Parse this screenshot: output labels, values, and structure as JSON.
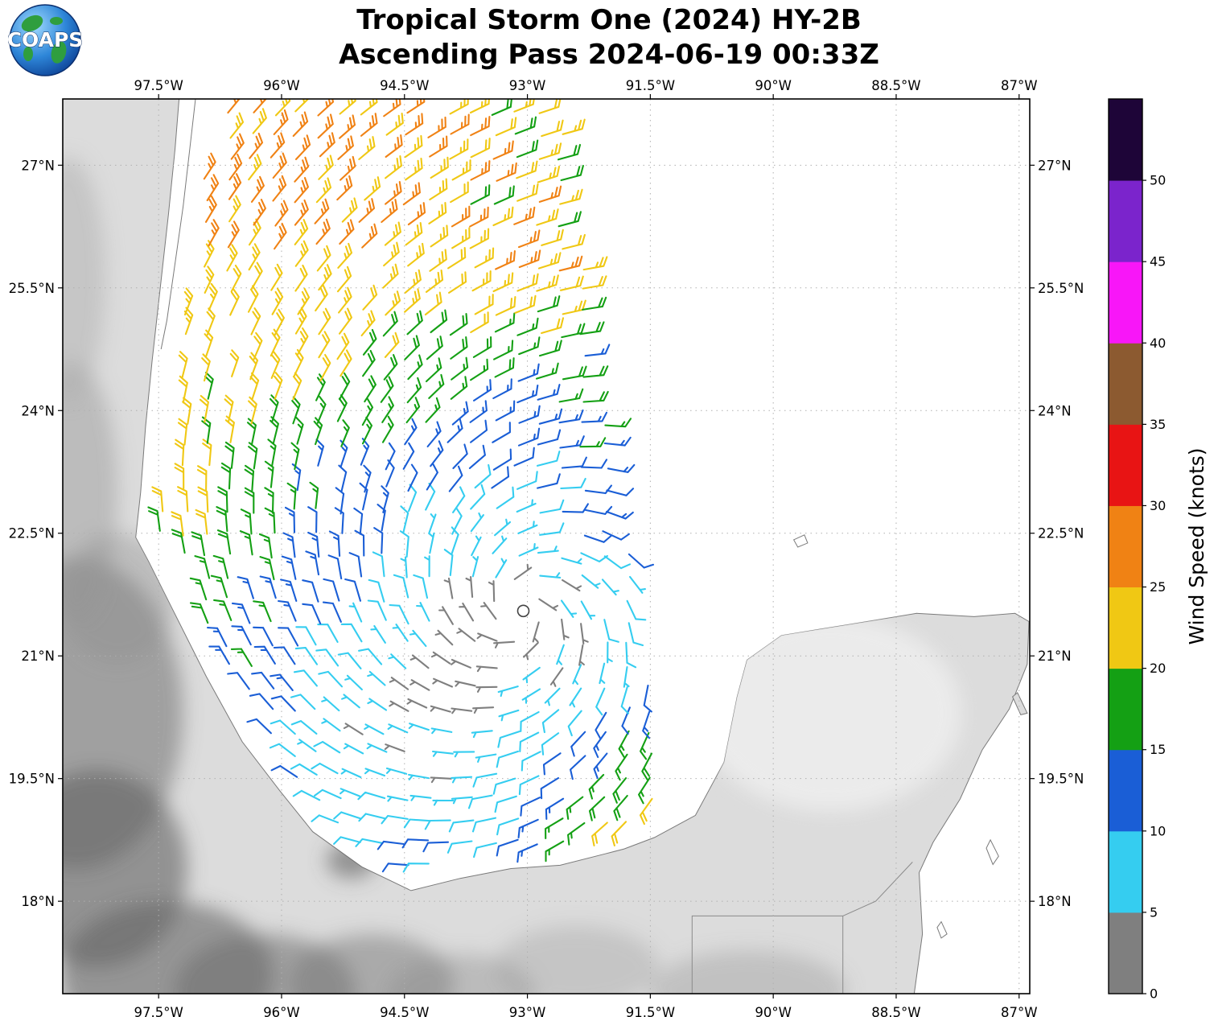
{
  "title": {
    "line1": "Tropical Storm One (2024) HY-2B",
    "line2": "Ascending Pass 2024-06-19 00:33Z"
  },
  "logo": {
    "text": "COAPS"
  },
  "chart_data": {
    "type": "wind_barb_map",
    "title": "Tropical Storm One (2024) HY-2B",
    "subtitle": "Ascending Pass 2024-06-19 00:33Z",
    "satellite": "HY-2B",
    "pass_type": "Ascending",
    "pass_time": "2024-06-19 00:33Z",
    "axes": {
      "lon_min": -98.67,
      "lon_max": -86.87,
      "lat_min": 16.87,
      "lat_max": 27.81,
      "lon_ticks": [
        -97.5,
        -96,
        -94.5,
        -93,
        -91.5,
        -90,
        -88.5,
        -87
      ],
      "lon_tick_labels": [
        "97.5°W",
        "96°W",
        "94.5°W",
        "93°W",
        "91.5°W",
        "90°W",
        "88.5°W",
        "87°W"
      ],
      "lat_ticks": [
        27,
        25.5,
        24,
        22.5,
        21,
        19.5,
        18
      ],
      "lat_tick_labels": [
        "27°N",
        "25.5°N",
        "24°N",
        "22.5°N",
        "21°N",
        "19.5°N",
        "18°N"
      ],
      "grid_style": "dotted"
    },
    "colorbar": {
      "label": "Wind Speed (knots)",
      "tick_values": [
        0,
        5,
        10,
        15,
        20,
        25,
        30,
        35,
        40,
        45,
        50
      ],
      "segments": [
        {
          "range": [
            0,
            5
          ],
          "color": "#7f7f7f"
        },
        {
          "range": [
            5,
            10
          ],
          "color": "#35cdf0"
        },
        {
          "range": [
            10,
            15
          ],
          "color": "#1a5ed6"
        },
        {
          "range": [
            15,
            20
          ],
          "color": "#14a014"
        },
        {
          "range": [
            20,
            25
          ],
          "color": "#f0c814"
        },
        {
          "range": [
            25,
            30
          ],
          "color": "#f08214"
        },
        {
          "range": [
            30,
            35
          ],
          "color": "#e81414"
        },
        {
          "range": [
            35,
            40
          ],
          "color": "#8c5a30"
        },
        {
          "range": [
            40,
            45
          ],
          "color": "#f816f8"
        },
        {
          "range": [
            45,
            50
          ],
          "color": "#7b24cc"
        },
        {
          "range": [
            50,
            55
          ],
          "color": "#1e0538"
        }
      ]
    },
    "wind_field": {
      "storm_center": {
        "lon": -93.05,
        "lat": 21.55
      },
      "grid_spacing": 0.27,
      "barb_convention": {
        "half_barb_knots": 5,
        "full_barb_knots": 10
      },
      "observed_speed_range_knots": [
        2,
        29
      ],
      "rotation": "counterclockwise",
      "model": {
        "base_kt": 2,
        "radial_slope": 4.6,
        "max_base_kt": 21,
        "north_bonus": 3.2,
        "nw_extra": 1.5,
        "east_bonus": 2.2,
        "se_bonus": 6.5,
        "sw_deficit": 8.5,
        "sw_azimuth_deg": -130,
        "sw_sigma_deg": 42,
        "inflow_angle_deg": 20,
        "calm_core_radius_deg": 0.42,
        "noise_kt": 1.8,
        "green_mottle_kt": 4.2
      },
      "swath": {
        "east_edge_lon_ref": -92.62,
        "ref_lat": 27.6,
        "east_edge_tilt": 0.163,
        "coast_margin_deg": 0.28,
        "north_coast_margin_extra": 0.2
      },
      "coast_west": [
        [
          27.81,
          -97.25
        ],
        [
          27.2,
          -97.3
        ],
        [
          26.4,
          -97.38
        ],
        [
          25.5,
          -97.48
        ],
        [
          24.6,
          -97.58
        ],
        [
          23.8,
          -97.66
        ],
        [
          23.0,
          -97.72
        ],
        [
          22.45,
          -97.78
        ],
        [
          22.15,
          -97.62
        ],
        [
          21.55,
          -97.32
        ],
        [
          20.75,
          -96.92
        ],
        [
          19.95,
          -96.48
        ],
        [
          19.35,
          -96.02
        ],
        [
          18.85,
          -95.62
        ],
        [
          18.42,
          -95.02
        ],
        [
          18.13,
          -94.42
        ]
      ],
      "coast_south": [
        [
          -95.02,
          18.42
        ],
        [
          -94.42,
          18.13
        ],
        [
          -93.82,
          18.28
        ],
        [
          -93.2,
          18.4
        ],
        [
          -92.6,
          18.44
        ],
        [
          -92.05,
          18.58
        ],
        [
          -91.82,
          18.64
        ],
        [
          -91.45,
          18.78
        ],
        [
          -90.95,
          19.05
        ],
        [
          -90.6,
          19.7
        ]
      ]
    },
    "land": {
      "mainland_coast": [
        [
          -97.25,
          27.81
        ],
        [
          -97.3,
          27.2
        ],
        [
          -97.38,
          26.4
        ],
        [
          -97.48,
          25.5
        ],
        [
          -97.58,
          24.6
        ],
        [
          -97.66,
          23.8
        ],
        [
          -97.72,
          23.0
        ],
        [
          -97.78,
          22.45
        ],
        [
          -97.62,
          22.15
        ],
        [
          -97.32,
          21.55
        ],
        [
          -96.92,
          20.75
        ],
        [
          -96.48,
          19.95
        ],
        [
          -96.02,
          19.35
        ],
        [
          -95.62,
          18.85
        ],
        [
          -95.02,
          18.42
        ],
        [
          -94.42,
          18.13
        ],
        [
          -93.82,
          18.28
        ],
        [
          -93.2,
          18.4
        ],
        [
          -92.6,
          18.44
        ],
        [
          -92.05,
          18.58
        ],
        [
          -91.82,
          18.64
        ],
        [
          -91.45,
          18.78
        ],
        [
          -90.95,
          19.05
        ],
        [
          -90.6,
          19.7
        ],
        [
          -90.44,
          20.5
        ],
        [
          -90.32,
          20.95
        ],
        [
          -89.9,
          21.25
        ],
        [
          -89.1,
          21.38
        ],
        [
          -88.25,
          21.52
        ],
        [
          -87.55,
          21.48
        ],
        [
          -87.05,
          21.52
        ],
        [
          -86.88,
          21.42
        ],
        [
          -86.9,
          20.9
        ],
        [
          -87.12,
          20.35
        ],
        [
          -87.45,
          19.85
        ],
        [
          -87.72,
          19.25
        ],
        [
          -88.05,
          18.72
        ],
        [
          -88.22,
          18.35
        ],
        [
          -88.18,
          17.6
        ],
        [
          -88.28,
          16.87
        ]
      ],
      "barrier_island": [
        [
          -97.05,
          27.81
        ],
        [
          -97.12,
          27.2
        ],
        [
          -97.2,
          26.5
        ],
        [
          -97.3,
          25.8
        ],
        [
          -97.4,
          25.1
        ],
        [
          -97.47,
          24.75
        ]
      ],
      "islands": [
        {
          "name": "arrecife-alacranes",
          "closed": true,
          "fill": "#ffffff",
          "pts": [
            [
              -89.75,
              22.42
            ],
            [
              -89.62,
              22.48
            ],
            [
              -89.58,
              22.38
            ],
            [
              -89.7,
              22.33
            ]
          ]
        },
        {
          "name": "cozumel",
          "closed": true,
          "fill": "#dcdcdc",
          "pts": [
            [
              -87.02,
              20.55
            ],
            [
              -86.9,
              20.3
            ],
            [
              -86.98,
              20.28
            ],
            [
              -87.08,
              20.5
            ]
          ]
        },
        {
          "name": "banco-chinchorro",
          "closed": true,
          "fill": "#ffffff",
          "pts": [
            [
              -87.35,
              18.75
            ],
            [
              -87.25,
              18.55
            ],
            [
              -87.32,
              18.45
            ],
            [
              -87.4,
              18.65
            ]
          ]
        },
        {
          "name": "reef-south",
          "closed": true,
          "fill": "#ffffff",
          "pts": [
            [
              -87.95,
              17.75
            ],
            [
              -87.88,
              17.6
            ],
            [
              -87.95,
              17.55
            ],
            [
              -88.0,
              17.68
            ]
          ]
        }
      ],
      "borders": [
        [
          [
            -90.99,
            16.87
          ],
          [
            -90.99,
            17.82
          ],
          [
            -89.15,
            17.82
          ],
          [
            -89.15,
            16.87
          ]
        ],
        [
          [
            -89.15,
            17.82
          ],
          [
            -88.75,
            18.0
          ],
          [
            -88.3,
            18.48
          ]
        ]
      ],
      "terrain_shading": [
        [
          -98.5,
          20.3,
          1.3,
          1.9,
          "#6e6e6e",
          0.55
        ],
        [
          -98.25,
          18.4,
          1.1,
          1.2,
          "#5f5f5f",
          0.6
        ],
        [
          -97.4,
          17.1,
          1.3,
          0.9,
          "#666666",
          0.6
        ],
        [
          -96.2,
          16.9,
          1.1,
          0.7,
          "#6e6e6e",
          0.55
        ],
        [
          -94.9,
          17.0,
          1.0,
          0.6,
          "#787878",
          0.5
        ],
        [
          -93.8,
          16.85,
          0.9,
          0.5,
          "#8a8a8a",
          0.4
        ],
        [
          -98.55,
          23.0,
          0.55,
          1.6,
          "#9c9c9c",
          0.5
        ],
        [
          -98.6,
          25.6,
          0.45,
          1.5,
          "#b0b0b0",
          0.5
        ],
        [
          -95.15,
          18.5,
          0.3,
          0.22,
          "#606060",
          0.6
        ],
        [
          -92.4,
          17.2,
          1.0,
          0.5,
          "#9a9a9a",
          0.35
        ],
        [
          -98.0,
          21.7,
          0.7,
          0.8,
          "#8f8f8f",
          0.4
        ],
        [
          -90.3,
          16.9,
          1.2,
          0.5,
          "#8f8f8f",
          0.35
        ],
        [
          -89.3,
          20.3,
          1.6,
          1.2,
          "#efefef",
          0.8
        ]
      ]
    }
  }
}
